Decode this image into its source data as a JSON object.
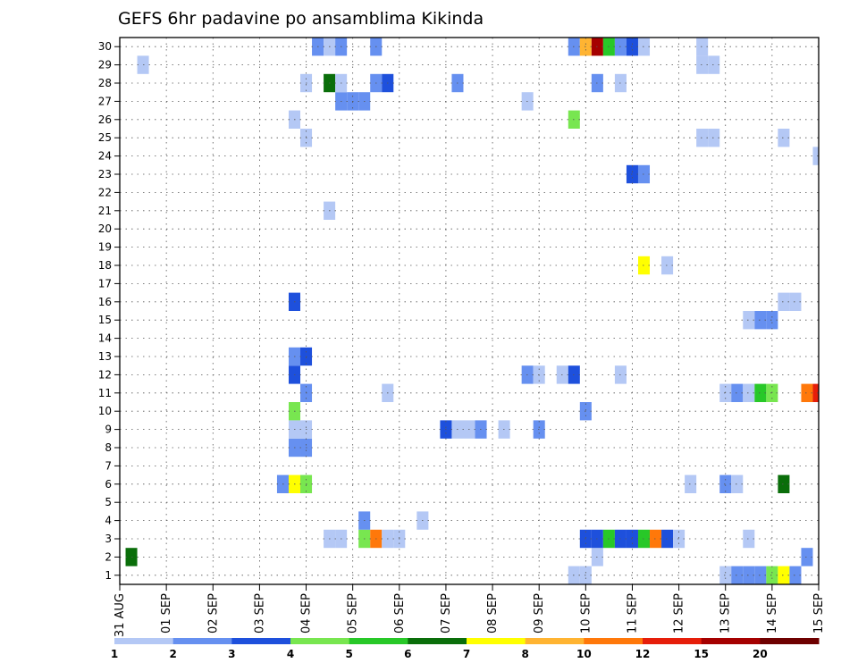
{
  "chart_data": {
    "type": "heatmap",
    "title": "GEFS 6hr padavine po ansamblima Kikinda",
    "xlabel": "",
    "ylabel": "",
    "x_tick_labels": [
      "31 AUG",
      "01 SEP",
      "02 SEP",
      "03 SEP",
      "04 SEP",
      "05 SEP",
      "06 SEP",
      "07 SEP",
      "08 SEP",
      "09 SEP",
      "10 SEP",
      "11 SEP",
      "12 SEP",
      "13 SEP",
      "14 SEP",
      "15 SEP"
    ],
    "y_tick_labels": [
      "1",
      "2",
      "3",
      "4",
      "5",
      "6",
      "7",
      "8",
      "9",
      "10",
      "11",
      "12",
      "13",
      "14",
      "15",
      "16",
      "17",
      "18",
      "19",
      "20",
      "21",
      "22",
      "23",
      "24",
      "25",
      "26",
      "27",
      "28",
      "29",
      "30"
    ],
    "xlim": [
      0,
      60
    ],
    "ylim": [
      0,
      30
    ],
    "grid": true,
    "colorbar": {
      "levels": [
        "1",
        "2",
        "3",
        "4",
        "5",
        "6",
        "7",
        "8",
        "10",
        "12",
        "15",
        "20"
      ],
      "colors": [
        "#b4c8f5",
        "#6690f0",
        "#1e50dc",
        "#78e650",
        "#28c828",
        "#0a6e0a",
        "#ffff00",
        "#ffb432",
        "#ff780a",
        "#e61e0a",
        "#a50000",
        "#6e0000"
      ]
    },
    "cells": [
      {
        "m": 0,
        "t": 52,
        "v": 1
      },
      {
        "m": 0,
        "t": 53,
        "v": 2
      },
      {
        "m": 0,
        "t": 54,
        "v": 2
      },
      {
        "m": 0,
        "t": 55,
        "v": 2
      },
      {
        "m": 0,
        "t": 56,
        "v": 4
      },
      {
        "m": 0,
        "t": 57,
        "v": 7
      },
      {
        "m": 0,
        "t": 58,
        "v": 2
      },
      {
        "m": 0,
        "t": 39,
        "v": 1
      },
      {
        "m": 0,
        "t": 40,
        "v": 1
      },
      {
        "m": 1,
        "t": 1,
        "v": 6
      },
      {
        "m": 1,
        "t": 41,
        "v": 1
      },
      {
        "m": 1,
        "t": 59,
        "v": 2
      },
      {
        "m": 2,
        "t": 18,
        "v": 1
      },
      {
        "m": 2,
        "t": 19,
        "v": 1
      },
      {
        "m": 2,
        "t": 21,
        "v": 4
      },
      {
        "m": 2,
        "t": 22,
        "v": 9
      },
      {
        "m": 2,
        "t": 23,
        "v": 1
      },
      {
        "m": 2,
        "t": 24,
        "v": 1
      },
      {
        "m": 2,
        "t": 40,
        "v": 3
      },
      {
        "m": 2,
        "t": 41,
        "v": 3
      },
      {
        "m": 2,
        "t": 42,
        "v": 5
      },
      {
        "m": 2,
        "t": 43,
        "v": 3
      },
      {
        "m": 2,
        "t": 44,
        "v": 3
      },
      {
        "m": 2,
        "t": 45,
        "v": 5
      },
      {
        "m": 2,
        "t": 46,
        "v": 9
      },
      {
        "m": 2,
        "t": 47,
        "v": 3
      },
      {
        "m": 2,
        "t": 48,
        "v": 1
      },
      {
        "m": 2,
        "t": 54,
        "v": 1
      },
      {
        "m": 3,
        "t": 21,
        "v": 2
      },
      {
        "m": 3,
        "t": 26,
        "v": 1
      },
      {
        "m": 5,
        "t": 14,
        "v": 2
      },
      {
        "m": 5,
        "t": 15,
        "v": 7
      },
      {
        "m": 5,
        "t": 16,
        "v": 4
      },
      {
        "m": 5,
        "t": 49,
        "v": 1
      },
      {
        "m": 5,
        "t": 52,
        "v": 2
      },
      {
        "m": 5,
        "t": 53,
        "v": 1
      },
      {
        "m": 5,
        "t": 57,
        "v": 6
      },
      {
        "m": 7,
        "t": 15,
        "v": 2
      },
      {
        "m": 7,
        "t": 16,
        "v": 2
      },
      {
        "m": 8,
        "t": 15,
        "v": 1
      },
      {
        "m": 8,
        "t": 16,
        "v": 1
      },
      {
        "m": 8,
        "t": 28,
        "v": 3
      },
      {
        "m": 8,
        "t": 29,
        "v": 1
      },
      {
        "m": 8,
        "t": 30,
        "v": 1
      },
      {
        "m": 8,
        "t": 31,
        "v": 2
      },
      {
        "m": 8,
        "t": 33,
        "v": 1
      },
      {
        "m": 8,
        "t": 36,
        "v": 2
      },
      {
        "m": 9,
        "t": 15,
        "v": 4
      },
      {
        "m": 9,
        "t": 40,
        "v": 2
      },
      {
        "m": 10,
        "t": 16,
        "v": 2
      },
      {
        "m": 10,
        "t": 23,
        "v": 1
      },
      {
        "m": 10,
        "t": 52,
        "v": 1
      },
      {
        "m": 10,
        "t": 53,
        "v": 2
      },
      {
        "m": 10,
        "t": 54,
        "v": 1
      },
      {
        "m": 10,
        "t": 55,
        "v": 5
      },
      {
        "m": 10,
        "t": 56,
        "v": 4
      },
      {
        "m": 10,
        "t": 59,
        "v": 9
      },
      {
        "m": 10,
        "t": 60,
        "v": 10
      },
      {
        "m": 11,
        "t": 15,
        "v": 3
      },
      {
        "m": 11,
        "t": 35,
        "v": 2
      },
      {
        "m": 11,
        "t": 36,
        "v": 1
      },
      {
        "m": 11,
        "t": 38,
        "v": 1
      },
      {
        "m": 11,
        "t": 39,
        "v": 3
      },
      {
        "m": 11,
        "t": 43,
        "v": 1
      },
      {
        "m": 12,
        "t": 15,
        "v": 2
      },
      {
        "m": 12,
        "t": 16,
        "v": 3
      },
      {
        "m": 14,
        "t": 54,
        "v": 1
      },
      {
        "m": 14,
        "t": 55,
        "v": 2
      },
      {
        "m": 14,
        "t": 56,
        "v": 2
      },
      {
        "m": 15,
        "t": 15,
        "v": 3
      },
      {
        "m": 15,
        "t": 57,
        "v": 1
      },
      {
        "m": 15,
        "t": 58,
        "v": 1
      },
      {
        "m": 17,
        "t": 45,
        "v": 7
      },
      {
        "m": 17,
        "t": 47,
        "v": 1
      },
      {
        "m": 20,
        "t": 18,
        "v": 1
      },
      {
        "m": 22,
        "t": 44,
        "v": 3
      },
      {
        "m": 22,
        "t": 45,
        "v": 2
      },
      {
        "m": 23,
        "t": 60,
        "v": 1
      },
      {
        "m": 24,
        "t": 16,
        "v": 1
      },
      {
        "m": 24,
        "t": 50,
        "v": 1
      },
      {
        "m": 24,
        "t": 51,
        "v": 1
      },
      {
        "m": 24,
        "t": 57,
        "v": 1
      },
      {
        "m": 25,
        "t": 15,
        "v": 1
      },
      {
        "m": 25,
        "t": 39,
        "v": 4
      },
      {
        "m": 26,
        "t": 19,
        "v": 2
      },
      {
        "m": 26,
        "t": 20,
        "v": 2
      },
      {
        "m": 26,
        "t": 21,
        "v": 2
      },
      {
        "m": 26,
        "t": 35,
        "v": 1
      },
      {
        "m": 27,
        "t": 16,
        "v": 1
      },
      {
        "m": 27,
        "t": 18,
        "v": 6
      },
      {
        "m": 27,
        "t": 19,
        "v": 1
      },
      {
        "m": 27,
        "t": 22,
        "v": 2
      },
      {
        "m": 27,
        "t": 23,
        "v": 3
      },
      {
        "m": 27,
        "t": 29,
        "v": 2
      },
      {
        "m": 27,
        "t": 41,
        "v": 2
      },
      {
        "m": 27,
        "t": 43,
        "v": 1
      },
      {
        "m": 28,
        "t": 2,
        "v": 1
      },
      {
        "m": 28,
        "t": 50,
        "v": 1
      },
      {
        "m": 28,
        "t": 51,
        "v": 1
      },
      {
        "m": 29,
        "t": 17,
        "v": 2
      },
      {
        "m": 29,
        "t": 18,
        "v": 1
      },
      {
        "m": 29,
        "t": 19,
        "v": 2
      },
      {
        "m": 29,
        "t": 22,
        "v": 2
      },
      {
        "m": 29,
        "t": 39,
        "v": 2
      },
      {
        "m": 29,
        "t": 40,
        "v": 8
      },
      {
        "m": 29,
        "t": 41,
        "v": 11
      },
      {
        "m": 29,
        "t": 42,
        "v": 5
      },
      {
        "m": 29,
        "t": 43,
        "v": 2
      },
      {
        "m": 29,
        "t": 44,
        "v": 3
      },
      {
        "m": 29,
        "t": 45,
        "v": 1
      },
      {
        "m": 29,
        "t": 50,
        "v": 1
      }
    ]
  }
}
